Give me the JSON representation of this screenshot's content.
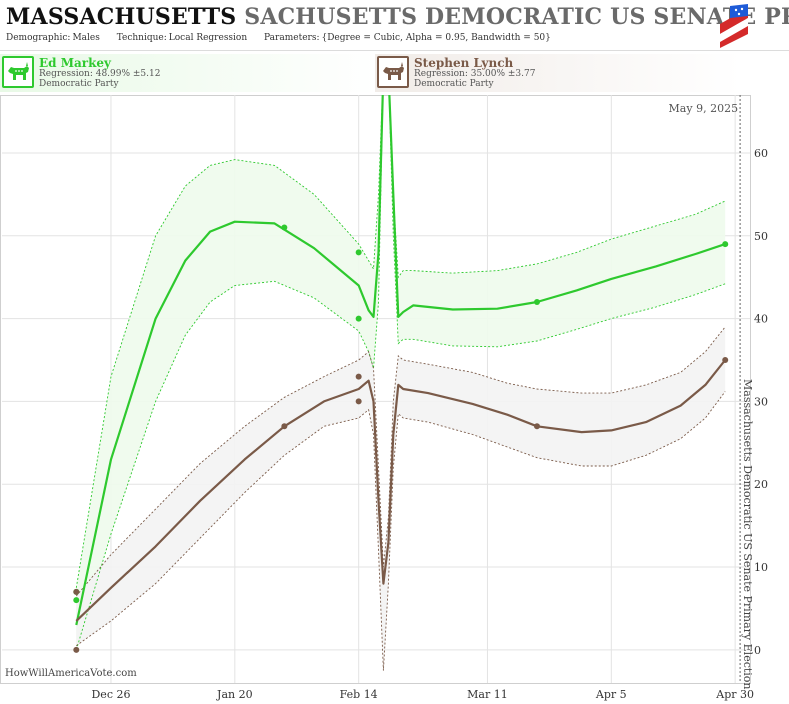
{
  "header": {
    "title_bold": "MASSACHUSETTS",
    "title_rest": "SACHUSETTS DEMOCRATIC US SENATE PRIM",
    "demographic_label": "Demographic:",
    "demographic_value": "Males",
    "technique_label": "Technique:",
    "technique_value": "Local Regression",
    "parameters_label": "Parameters:",
    "parameters_value": "{Degree = Cubic, Alpha = 0.95, Bandwidth = 50}"
  },
  "candidates": [
    {
      "name": "Ed Markey",
      "regression": "Regression: 48.99% ±5.12",
      "party": "Democratic Party",
      "color": "#2ec92e"
    },
    {
      "name": "Stephen Lynch",
      "regression": "Regression: 35.00% ±3.77",
      "party": "Democratic Party",
      "color": "#7a5a48"
    }
  ],
  "watermark": "HowWillAmericaVote.com",
  "chart_data": {
    "type": "line",
    "date_label": "May 9, 2025",
    "side_label": "Massachusetts Democratic US Senate Primary Election",
    "x_axis": {
      "type": "date",
      "range": [
        "2019-12-04",
        "2020-05-03"
      ],
      "ticks": [
        {
          "label": "Dec 26",
          "date": "2019-12-26"
        },
        {
          "label": "Jan 20",
          "date": "2020-01-20"
        },
        {
          "label": "Feb 14",
          "date": "2020-02-14"
        },
        {
          "label": "Mar 11",
          "date": "2020-03-11"
        },
        {
          "label": "Apr 5",
          "date": "2020-04-05"
        },
        {
          "label": "Apr 30",
          "date": "2020-04-30"
        }
      ],
      "reference_line_date": "2020-05-01"
    },
    "y_axis": {
      "range": [
        -4,
        67
      ],
      "ticks": [
        0,
        10,
        20,
        30,
        40,
        50,
        60
      ],
      "position": "right"
    },
    "grid": true,
    "series": [
      {
        "name": "Ed Markey",
        "color": "#2ec92e",
        "points": [
          {
            "date": "2019-12-19",
            "value": 7
          },
          {
            "date": "2019-12-19",
            "value": 6
          },
          {
            "date": "2020-01-30",
            "value": 51
          },
          {
            "date": "2020-02-14",
            "value": 48
          },
          {
            "date": "2020-02-14",
            "value": 40
          },
          {
            "date": "2020-03-21",
            "value": 42
          },
          {
            "date": "2020-04-28",
            "value": 49
          }
        ],
        "fit": [
          {
            "date": "2019-12-19",
            "value": 3
          },
          {
            "date": "2019-12-26",
            "value": 23
          },
          {
            "date": "2020-01-04",
            "value": 40
          },
          {
            "date": "2020-01-10",
            "value": 47
          },
          {
            "date": "2020-01-15",
            "value": 50.5
          },
          {
            "date": "2020-01-20",
            "value": 51.7
          },
          {
            "date": "2020-01-28",
            "value": 51.5
          },
          {
            "date": "2020-02-05",
            "value": 48.5
          },
          {
            "date": "2020-02-14",
            "value": 44
          },
          {
            "date": "2020-02-16",
            "value": 41
          },
          {
            "date": "2020-02-17",
            "value": 40.2
          },
          {
            "date": "2020-02-18",
            "value": 48
          },
          {
            "date": "2020-02-19",
            "value": 70
          },
          {
            "date": "2020-02-20",
            "value": 70
          },
          {
            "date": "2020-02-21",
            "value": 55
          },
          {
            "date": "2020-02-22",
            "value": 40.2
          },
          {
            "date": "2020-02-23",
            "value": 40.8
          },
          {
            "date": "2020-02-25",
            "value": 41.6
          },
          {
            "date": "2020-03-04",
            "value": 41.1
          },
          {
            "date": "2020-03-13",
            "value": 41.2
          },
          {
            "date": "2020-03-21",
            "value": 42
          },
          {
            "date": "2020-03-29",
            "value": 43.4
          },
          {
            "date": "2020-04-05",
            "value": 44.8
          },
          {
            "date": "2020-04-14",
            "value": 46.3
          },
          {
            "date": "2020-04-22",
            "value": 47.8
          },
          {
            "date": "2020-04-28",
            "value": 49
          }
        ],
        "band_upper": [
          {
            "date": "2019-12-19",
            "value": 7.5
          },
          {
            "date": "2019-12-26",
            "value": 33
          },
          {
            "date": "2020-01-04",
            "value": 50
          },
          {
            "date": "2020-01-10",
            "value": 56
          },
          {
            "date": "2020-01-15",
            "value": 58.5
          },
          {
            "date": "2020-01-20",
            "value": 59.2
          },
          {
            "date": "2020-01-28",
            "value": 58.5
          },
          {
            "date": "2020-02-05",
            "value": 55
          },
          {
            "date": "2020-02-14",
            "value": 49
          },
          {
            "date": "2020-02-16",
            "value": 47
          },
          {
            "date": "2020-02-17",
            "value": 46
          },
          {
            "date": "2020-02-18",
            "value": 55
          },
          {
            "date": "2020-02-19",
            "value": 70
          },
          {
            "date": "2020-02-20",
            "value": 70
          },
          {
            "date": "2020-02-21",
            "value": 55
          },
          {
            "date": "2020-02-22",
            "value": 45
          },
          {
            "date": "2020-02-23",
            "value": 45.8
          },
          {
            "date": "2020-02-25",
            "value": 45.8
          },
          {
            "date": "2020-03-04",
            "value": 45.5
          },
          {
            "date": "2020-03-13",
            "value": 45.8
          },
          {
            "date": "2020-03-21",
            "value": 46.6
          },
          {
            "date": "2020-03-29",
            "value": 48
          },
          {
            "date": "2020-04-05",
            "value": 49.6
          },
          {
            "date": "2020-04-14",
            "value": 51.2
          },
          {
            "date": "2020-04-22",
            "value": 52.6
          },
          {
            "date": "2020-04-28",
            "value": 54.2
          }
        ],
        "band_lower": [
          {
            "date": "2019-12-19",
            "value": 0
          },
          {
            "date": "2019-12-26",
            "value": 14
          },
          {
            "date": "2020-01-04",
            "value": 30
          },
          {
            "date": "2020-01-10",
            "value": 38
          },
          {
            "date": "2020-01-15",
            "value": 42
          },
          {
            "date": "2020-01-20",
            "value": 44
          },
          {
            "date": "2020-01-28",
            "value": 44.5
          },
          {
            "date": "2020-02-05",
            "value": 42.5
          },
          {
            "date": "2020-02-14",
            "value": 38.5
          },
          {
            "date": "2020-02-16",
            "value": 36
          },
          {
            "date": "2020-02-17",
            "value": 34
          },
          {
            "date": "2020-02-18",
            "value": 42
          },
          {
            "date": "2020-02-19",
            "value": 70
          },
          {
            "date": "2020-02-20",
            "value": 70
          },
          {
            "date": "2020-02-21",
            "value": 50
          },
          {
            "date": "2020-02-22",
            "value": 37
          },
          {
            "date": "2020-02-23",
            "value": 37.5
          },
          {
            "date": "2020-02-25",
            "value": 37.5
          },
          {
            "date": "2020-03-04",
            "value": 36.7
          },
          {
            "date": "2020-03-13",
            "value": 36.6
          },
          {
            "date": "2020-03-21",
            "value": 37.3
          },
          {
            "date": "2020-03-29",
            "value": 38.7
          },
          {
            "date": "2020-04-05",
            "value": 40
          },
          {
            "date": "2020-04-14",
            "value": 41.4
          },
          {
            "date": "2020-04-22",
            "value": 42.9
          },
          {
            "date": "2020-04-28",
            "value": 44.2
          }
        ]
      },
      {
        "name": "Stephen Lynch",
        "color": "#7a5a48",
        "points": [
          {
            "date": "2019-12-19",
            "value": 7
          },
          {
            "date": "2019-12-19",
            "value": 0
          },
          {
            "date": "2020-01-30",
            "value": 27
          },
          {
            "date": "2020-02-14",
            "value": 33
          },
          {
            "date": "2020-02-14",
            "value": 30
          },
          {
            "date": "2020-03-21",
            "value": 27
          },
          {
            "date": "2020-04-28",
            "value": 35
          }
        ],
        "fit": [
          {
            "date": "2019-12-19",
            "value": 3.5
          },
          {
            "date": "2019-12-26",
            "value": 7.5
          },
          {
            "date": "2020-01-04",
            "value": 12.5
          },
          {
            "date": "2020-01-13",
            "value": 18
          },
          {
            "date": "2020-01-22",
            "value": 23
          },
          {
            "date": "2020-01-30",
            "value": 27
          },
          {
            "date": "2020-02-07",
            "value": 30
          },
          {
            "date": "2020-02-14",
            "value": 31.5
          },
          {
            "date": "2020-02-16",
            "value": 32.5
          },
          {
            "date": "2020-02-17",
            "value": 30
          },
          {
            "date": "2020-02-18",
            "value": 18
          },
          {
            "date": "2020-02-19",
            "value": 8
          },
          {
            "date": "2020-02-20",
            "value": 13
          },
          {
            "date": "2020-02-21",
            "value": 26
          },
          {
            "date": "2020-02-22",
            "value": 32
          },
          {
            "date": "2020-02-23",
            "value": 31.5
          },
          {
            "date": "2020-02-28",
            "value": 31
          },
          {
            "date": "2020-03-08",
            "value": 29.7
          },
          {
            "date": "2020-03-15",
            "value": 28.4
          },
          {
            "date": "2020-03-21",
            "value": 27
          },
          {
            "date": "2020-03-30",
            "value": 26.3
          },
          {
            "date": "2020-04-05",
            "value": 26.5
          },
          {
            "date": "2020-04-12",
            "value": 27.5
          },
          {
            "date": "2020-04-19",
            "value": 29.5
          },
          {
            "date": "2020-04-24",
            "value": 32
          },
          {
            "date": "2020-04-28",
            "value": 35
          }
        ],
        "band_upper": [
          {
            "date": "2019-12-19",
            "value": 6.5
          },
          {
            "date": "2019-12-26",
            "value": 11.5
          },
          {
            "date": "2020-01-04",
            "value": 17
          },
          {
            "date": "2020-01-13",
            "value": 22.5
          },
          {
            "date": "2020-01-22",
            "value": 27
          },
          {
            "date": "2020-01-30",
            "value": 30.5
          },
          {
            "date": "2020-02-07",
            "value": 33
          },
          {
            "date": "2020-02-14",
            "value": 35
          },
          {
            "date": "2020-02-16",
            "value": 36
          },
          {
            "date": "2020-02-17",
            "value": 34
          },
          {
            "date": "2020-02-18",
            "value": 22
          },
          {
            "date": "2020-02-19",
            "value": 10
          },
          {
            "date": "2020-02-20",
            "value": 16
          },
          {
            "date": "2020-02-21",
            "value": 30
          },
          {
            "date": "2020-02-22",
            "value": 35.5
          },
          {
            "date": "2020-02-23",
            "value": 35
          },
          {
            "date": "2020-02-28",
            "value": 34.5
          },
          {
            "date": "2020-03-08",
            "value": 33.5
          },
          {
            "date": "2020-03-15",
            "value": 32.2
          },
          {
            "date": "2020-03-21",
            "value": 31.5
          },
          {
            "date": "2020-03-30",
            "value": 31
          },
          {
            "date": "2020-04-05",
            "value": 31
          },
          {
            "date": "2020-04-12",
            "value": 32
          },
          {
            "date": "2020-04-19",
            "value": 33.5
          },
          {
            "date": "2020-04-24",
            "value": 36
          },
          {
            "date": "2020-04-28",
            "value": 39
          }
        ],
        "band_lower": [
          {
            "date": "2019-12-19",
            "value": 0.5
          },
          {
            "date": "2019-12-26",
            "value": 3.5
          },
          {
            "date": "2020-01-04",
            "value": 8
          },
          {
            "date": "2020-01-13",
            "value": 13.5
          },
          {
            "date": "2020-01-22",
            "value": 19
          },
          {
            "date": "2020-01-30",
            "value": 23.5
          },
          {
            "date": "2020-02-07",
            "value": 27
          },
          {
            "date": "2020-02-14",
            "value": 28
          },
          {
            "date": "2020-02-16",
            "value": 29
          },
          {
            "date": "2020-02-17",
            "value": 26
          },
          {
            "date": "2020-02-18",
            "value": 12
          },
          {
            "date": "2020-02-19",
            "value": -2.5
          },
          {
            "date": "2020-02-20",
            "value": 8
          },
          {
            "date": "2020-02-21",
            "value": 22
          },
          {
            "date": "2020-02-22",
            "value": 28.5
          },
          {
            "date": "2020-02-23",
            "value": 28
          },
          {
            "date": "2020-02-28",
            "value": 27.5
          },
          {
            "date": "2020-03-08",
            "value": 26
          },
          {
            "date": "2020-03-15",
            "value": 24.5
          },
          {
            "date": "2020-03-21",
            "value": 23.2
          },
          {
            "date": "2020-03-30",
            "value": 22.2
          },
          {
            "date": "2020-04-05",
            "value": 22.2
          },
          {
            "date": "2020-04-12",
            "value": 23.5
          },
          {
            "date": "2020-04-19",
            "value": 25.5
          },
          {
            "date": "2020-04-24",
            "value": 28
          },
          {
            "date": "2020-04-28",
            "value": 31.2
          }
        ]
      }
    ]
  }
}
